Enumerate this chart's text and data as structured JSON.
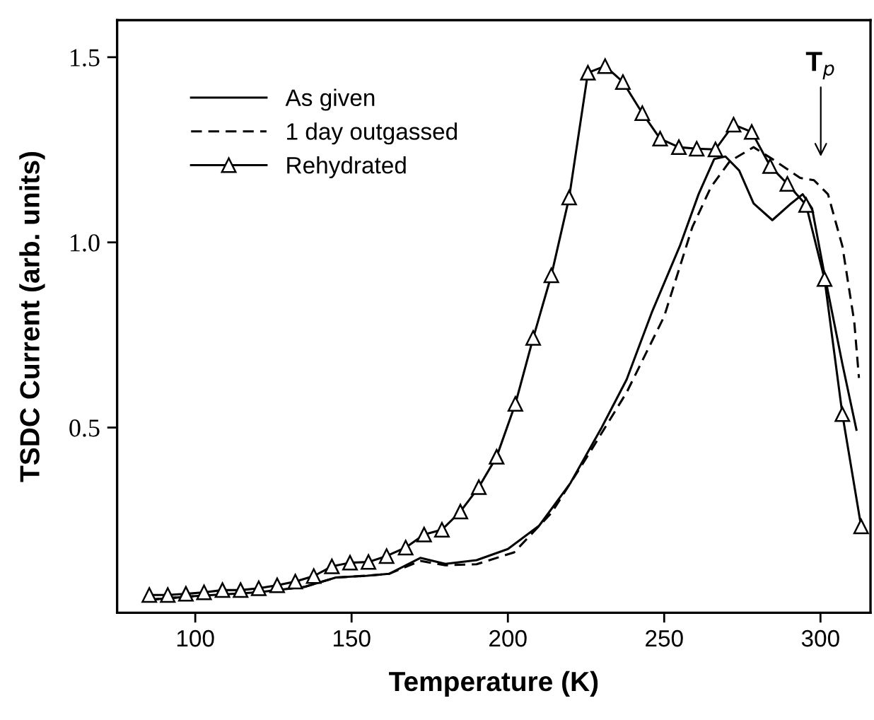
{
  "chart_data": {
    "type": "line",
    "xlabel": "Temperature (K)",
    "ylabel": "TSDC Current (arb. units)",
    "xlim": [
      75,
      316
    ],
    "ylim": [
      0,
      1.6
    ],
    "xticks": [
      100,
      150,
      200,
      250,
      300
    ],
    "yticks": [
      {
        "value": 0.5,
        "label": "0.5"
      },
      {
        "value": 1.0,
        "label": "1.0"
      },
      {
        "value": 1.5,
        "label": "1.5"
      }
    ],
    "grid": false,
    "legend": "top left",
    "annotations": [
      "T$_{p}$"
    ],
    "series": [
      {
        "name": "As given",
        "color": "#000000",
        "line_style": "solid",
        "marker": "none",
        "x": [
          85,
          100,
          120,
          135,
          145,
          155,
          162,
          172,
          180,
          190,
          200,
          210,
          220,
          230,
          238,
          246,
          255,
          261,
          266,
          269.6,
          274,
          278.6,
          284.6,
          290.6,
          294.3,
          297.3,
          301,
          307,
          311.5
        ],
        "values": [
          0.035,
          0.045,
          0.055,
          0.07,
          0.095,
          0.1,
          0.105,
          0.148,
          0.132,
          0.142,
          0.172,
          0.235,
          0.35,
          0.5,
          0.63,
          0.81,
          0.99,
          1.13,
          1.225,
          1.232,
          1.194,
          1.105,
          1.06,
          1.105,
          1.13,
          1.092,
          0.926,
          0.672,
          0.494
        ]
      },
      {
        "name": "1 day outgassed",
        "color": "#000000",
        "line_style": "dashed",
        "marker": "none",
        "x": [
          85,
          100,
          120,
          135,
          145,
          155,
          162,
          172,
          180,
          190,
          202,
          214,
          226,
          238,
          250,
          259,
          265,
          271,
          278.6,
          284.6,
          293.5,
          297.9,
          302.4,
          307,
          310.8,
          312.3
        ],
        "values": [
          0.035,
          0.045,
          0.055,
          0.07,
          0.095,
          0.1,
          0.105,
          0.14,
          0.128,
          0.131,
          0.163,
          0.27,
          0.43,
          0.595,
          0.8,
          1.041,
          1.15,
          1.219,
          1.257,
          1.225,
          1.174,
          1.168,
          1.13,
          0.99,
          0.786,
          0.634
        ]
      },
      {
        "name": "Rehydrated",
        "color": "#000000",
        "line_style": "solid",
        "marker": "triangle",
        "x": [
          85.3,
          91.2,
          97.0,
          102.8,
          108.7,
          114.5,
          120.3,
          126.2,
          132.0,
          137.9,
          143.7,
          149.5,
          155.4,
          161.2,
          167.3,
          173.2,
          178.9,
          184.8,
          190.7,
          196.4,
          202.4,
          208.1,
          213.9,
          219.6,
          225.6,
          231.1,
          236.8,
          243.0,
          248.7,
          254.7,
          260.4,
          266.4,
          272.2,
          278.0,
          283.9,
          289.4,
          295.4,
          301.3,
          307.0,
          313.0
        ],
        "values": [
          0.048,
          0.048,
          0.051,
          0.055,
          0.061,
          0.061,
          0.066,
          0.074,
          0.084,
          0.099,
          0.125,
          0.135,
          0.137,
          0.153,
          0.176,
          0.211,
          0.224,
          0.273,
          0.339,
          0.421,
          0.564,
          0.742,
          0.911,
          1.121,
          1.458,
          1.476,
          1.433,
          1.349,
          1.28,
          1.257,
          1.253,
          1.251,
          1.318,
          1.298,
          1.206,
          1.158,
          1.101,
          0.901,
          0.536,
          0.233
        ]
      }
    ]
  }
}
